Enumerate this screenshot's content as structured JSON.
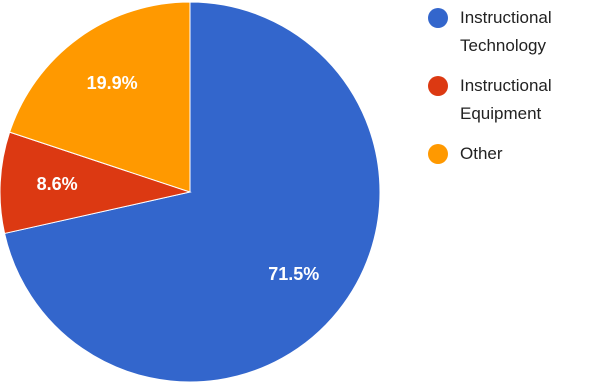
{
  "chart_data": {
    "type": "pie",
    "title": "",
    "start_angle_deg": 0,
    "direction": "clockwise",
    "legend_position": "right",
    "series": [
      {
        "name": "Instructional Technology",
        "value": 71.5,
        "label": "71.5%",
        "color": "#3366cc"
      },
      {
        "name": "Instructional Equipment",
        "value": 8.6,
        "label": "8.6%",
        "color": "#dc3912"
      },
      {
        "name": "Other",
        "value": 19.9,
        "label": "19.9%",
        "color": "#ff9900"
      }
    ]
  },
  "legend": {
    "items": [
      {
        "lines": [
          "Instructional",
          "Technology"
        ],
        "color": "#3366cc"
      },
      {
        "lines": [
          "Instructional",
          "Equipment"
        ],
        "color": "#dc3912"
      },
      {
        "lines": [
          "Other",
          ""
        ],
        "color": "#ff9900"
      }
    ]
  }
}
